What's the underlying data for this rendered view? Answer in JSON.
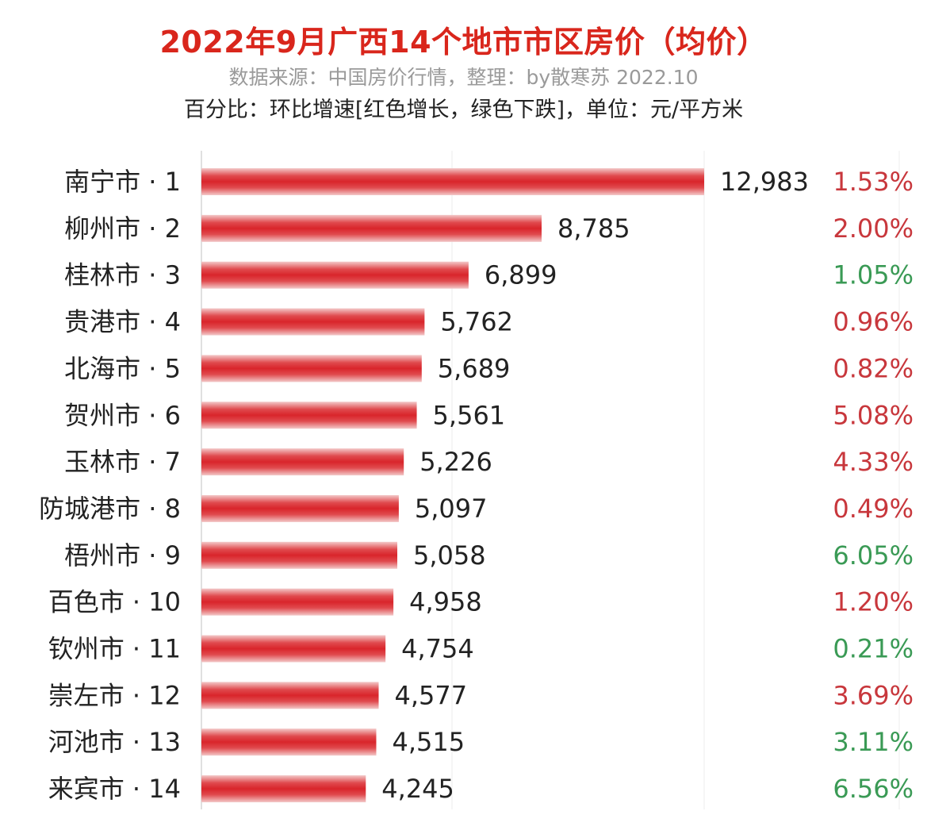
{
  "header": {
    "title": "2022年9月广西14个地市市区房价（均价）",
    "source": "数据来源：中国房价行情，整理：by散寒苏 2022.10",
    "note": "百分比：环比增速[红色增长，绿色下跌]，单位：元/平方米"
  },
  "colors": {
    "title": "#d9261c",
    "bar": "#d9252b",
    "increase": "#c8373c",
    "decrease": "#3a9a55"
  },
  "chart_data": {
    "type": "bar",
    "orientation": "horizontal",
    "categories": [
      "南宁市 · 1",
      "柳州市 · 2",
      "桂林市 · 3",
      "贵港市 · 4",
      "北海市 · 5",
      "贺州市 · 6",
      "玉林市 · 7",
      "防城港市 · 8",
      "梧州市 · 9",
      "百色市 · 10",
      "钦州市 · 11",
      "崇左市 · 12",
      "河池市 · 13",
      "来宾市 · 14"
    ],
    "values": [
      12983,
      8785,
      6899,
      5762,
      5689,
      5561,
      5226,
      5097,
      5058,
      4958,
      4754,
      4577,
      4515,
      4245
    ],
    "value_labels": [
      "12,983",
      "8,785",
      "6,899",
      "5,762",
      "5,689",
      "5,561",
      "5,226",
      "5,097",
      "5,058",
      "4,958",
      "4,754",
      "4,577",
      "4,515",
      "4,245"
    ],
    "mom_change": [
      "1.53%",
      "2.00%",
      "1.05%",
      "0.96%",
      "0.82%",
      "5.08%",
      "4.33%",
      "0.49%",
      "6.05%",
      "1.20%",
      "0.21%",
      "3.69%",
      "3.11%",
      "6.56%"
    ],
    "mom_direction": [
      "up",
      "up",
      "down",
      "up",
      "up",
      "up",
      "up",
      "up",
      "down",
      "up",
      "down",
      "up",
      "down",
      "down"
    ],
    "xlim": [
      0,
      12983
    ],
    "grid": false,
    "legend": "none"
  }
}
